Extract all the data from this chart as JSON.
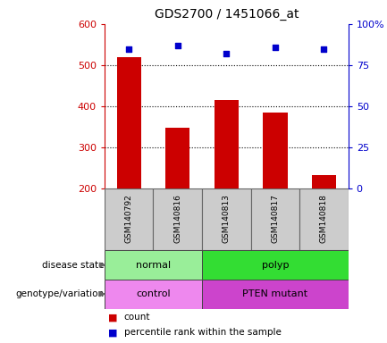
{
  "title": "GDS2700 / 1451066_at",
  "samples": [
    "GSM140792",
    "GSM140816",
    "GSM140813",
    "GSM140817",
    "GSM140818"
  ],
  "counts": [
    520,
    348,
    415,
    385,
    233
  ],
  "percentiles": [
    85,
    87,
    82,
    86,
    85
  ],
  "ylim_left": [
    200,
    600
  ],
  "ylim_right": [
    0,
    100
  ],
  "left_ticks": [
    200,
    300,
    400,
    500,
    600
  ],
  "right_ticks": [
    0,
    25,
    50,
    75,
    100
  ],
  "right_tick_labels": [
    "0",
    "25",
    "50",
    "75",
    "100%"
  ],
  "bar_color": "#cc0000",
  "scatter_color": "#0000cc",
  "disease_state": [
    {
      "label": "normal",
      "span": [
        0,
        2
      ],
      "color": "#99ee99"
    },
    {
      "label": "polyp",
      "span": [
        2,
        5
      ],
      "color": "#33dd33"
    }
  ],
  "genotype": [
    {
      "label": "control",
      "span": [
        0,
        2
      ],
      "color": "#ee88ee"
    },
    {
      "label": "PTEN mutant",
      "span": [
        2,
        5
      ],
      "color": "#cc44cc"
    }
  ],
  "disease_label": "disease state",
  "genotype_label": "genotype/variation",
  "legend_count": "count",
  "legend_pct": "percentile rank within the sample",
  "bg_color": "#ffffff",
  "label_area_color": "#cccccc",
  "grid_lines": [
    300,
    400,
    500
  ]
}
